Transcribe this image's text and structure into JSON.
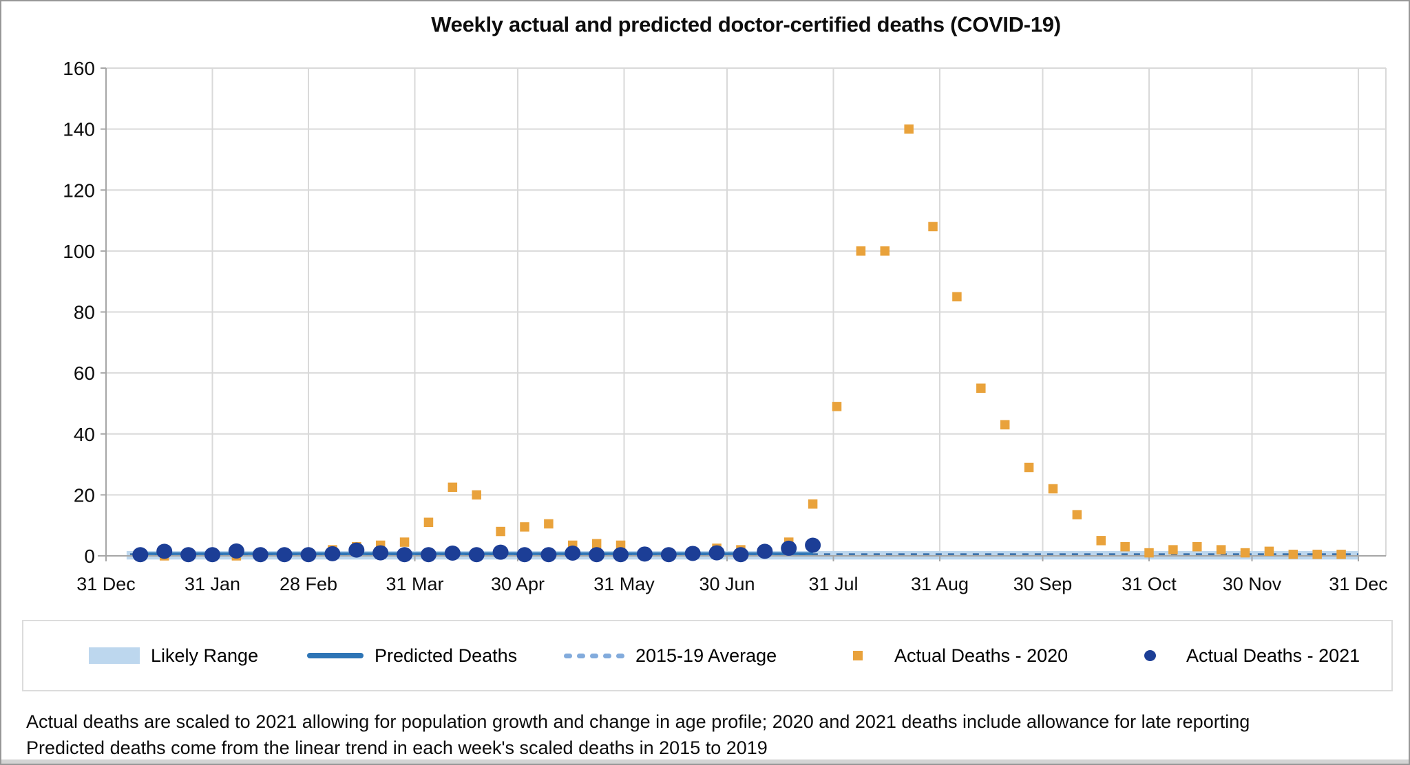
{
  "title": "Weekly actual and predicted doctor-certified deaths (COVID-19)",
  "legend": {
    "items": [
      {
        "label": "Likely Range",
        "type": "band"
      },
      {
        "label": "Predicted Deaths",
        "type": "solid-line"
      },
      {
        "label": "2015-19 Average",
        "type": "dashed-line"
      },
      {
        "label": "Actual Deaths - 2020",
        "type": "square-marker"
      },
      {
        "label": "Actual Deaths - 2021",
        "type": "circle-marker"
      }
    ]
  },
  "footnotes": {
    "line1": "Actual deaths are scaled to 2021 allowing for population growth and change in age profile; 2020 and 2021 deaths include allowance for late reporting",
    "line2": "Predicted deaths come from the linear trend in each week's scaled deaths in 2015 to 2019"
  },
  "colors": {
    "actual_2020": "#E9A23B",
    "actual_2021": "#1C3E96",
    "predicted_line": "#2E75B6",
    "average_line": "#3E74AC",
    "average_legend_swatch": "#82ABDC",
    "likely_range_band": "#BDD7EE",
    "gridline": "#D9D9D9",
    "axis": "#A6A6A6",
    "text": "#0d0d0d"
  },
  "chart_data": {
    "type": "scatter",
    "title": "Weekly actual and predicted doctor-certified deaths (COVID-19)",
    "xlabel": "",
    "ylabel": "",
    "ylim": [
      0,
      160
    ],
    "ytick_step": 20,
    "y_ticks": [
      0,
      20,
      40,
      60,
      80,
      100,
      120,
      140,
      160
    ],
    "x_tick_labels": [
      "31 Dec",
      "31 Jan",
      "28 Feb",
      "31 Mar",
      "30 Apr",
      "31 May",
      "30 Jun",
      "31 Jul",
      "31 Aug",
      "30 Sep",
      "31 Oct",
      "30 Nov",
      "31 Dec"
    ],
    "x_tick_days": [
      0,
      31,
      59,
      90,
      120,
      151,
      181,
      212,
      243,
      273,
      304,
      334,
      365
    ],
    "gridlines": true,
    "legend_position": "bottom",
    "weeks": [
      "10 Jan",
      "17 Jan",
      "24 Jan",
      "31 Jan",
      "7 Feb",
      "14 Feb",
      "21 Feb",
      "28 Feb",
      "7 Mar",
      "14 Mar",
      "21 Mar",
      "28 Mar",
      "4 Apr",
      "11 Apr",
      "18 Apr",
      "25 Apr",
      "2 May",
      "9 May",
      "16 May",
      "23 May",
      "30 May",
      "6 Jun",
      "13 Jun",
      "20 Jun",
      "27 Jun",
      "4 Jul",
      "11 Jul",
      "18 Jul",
      "25 Jul",
      "1 Aug",
      "8 Aug",
      "15 Aug",
      "22 Aug",
      "29 Aug",
      "5 Sep",
      "12 Sep",
      "19 Sep",
      "26 Sep",
      "3 Oct",
      "10 Oct",
      "17 Oct",
      "24 Oct",
      "31 Oct",
      "7 Nov",
      "14 Nov",
      "21 Nov",
      "28 Nov",
      "5 Dec",
      "12 Dec",
      "19 Dec",
      "26 Dec"
    ],
    "series": [
      {
        "name": "Actual Deaths - 2020",
        "marker": "square",
        "first_week": "10 Jan",
        "values": [
          0,
          0,
          0,
          0,
          0,
          0,
          0,
          0.5,
          2,
          3,
          3.5,
          4.5,
          11,
          22.5,
          20,
          8,
          9.5,
          10.5,
          3.5,
          4,
          3.5,
          0.5,
          0.5,
          1,
          2.5,
          2,
          1,
          4.5,
          17,
          49,
          100,
          100,
          140,
          108,
          85,
          55,
          43,
          29,
          22,
          13.5,
          5,
          3,
          1,
          2,
          3,
          2,
          1,
          1.5,
          0.5,
          0.5,
          0.5
        ]
      },
      {
        "name": "Actual Deaths - 2021",
        "marker": "circle",
        "first_week": "10 Jan",
        "last_week": "25 Jul",
        "values": [
          0.4,
          1.5,
          0.4,
          0.4,
          1.6,
          0.4,
          0.4,
          0.4,
          0.7,
          1.9,
          1.0,
          0.4,
          0.4,
          0.9,
          0.4,
          1.2,
          0.4,
          0.4,
          0.9,
          0.4,
          0.4,
          0.6,
          0.4,
          0.8,
          1.0,
          0.4,
          1.5,
          2.5,
          3.5
        ]
      },
      {
        "name": "Predicted Deaths",
        "kind": "line",
        "value": 0.7,
        "start_day": 10,
        "end_day": 206
      },
      {
        "name": "2015-19 Average",
        "kind": "dashed-line",
        "value": 0.35,
        "start_day": 7,
        "end_day": 365
      },
      {
        "name": "Likely Range",
        "kind": "band",
        "low": -1.2,
        "high": 1.6,
        "start_day": 6,
        "end_day": 365
      }
    ]
  }
}
